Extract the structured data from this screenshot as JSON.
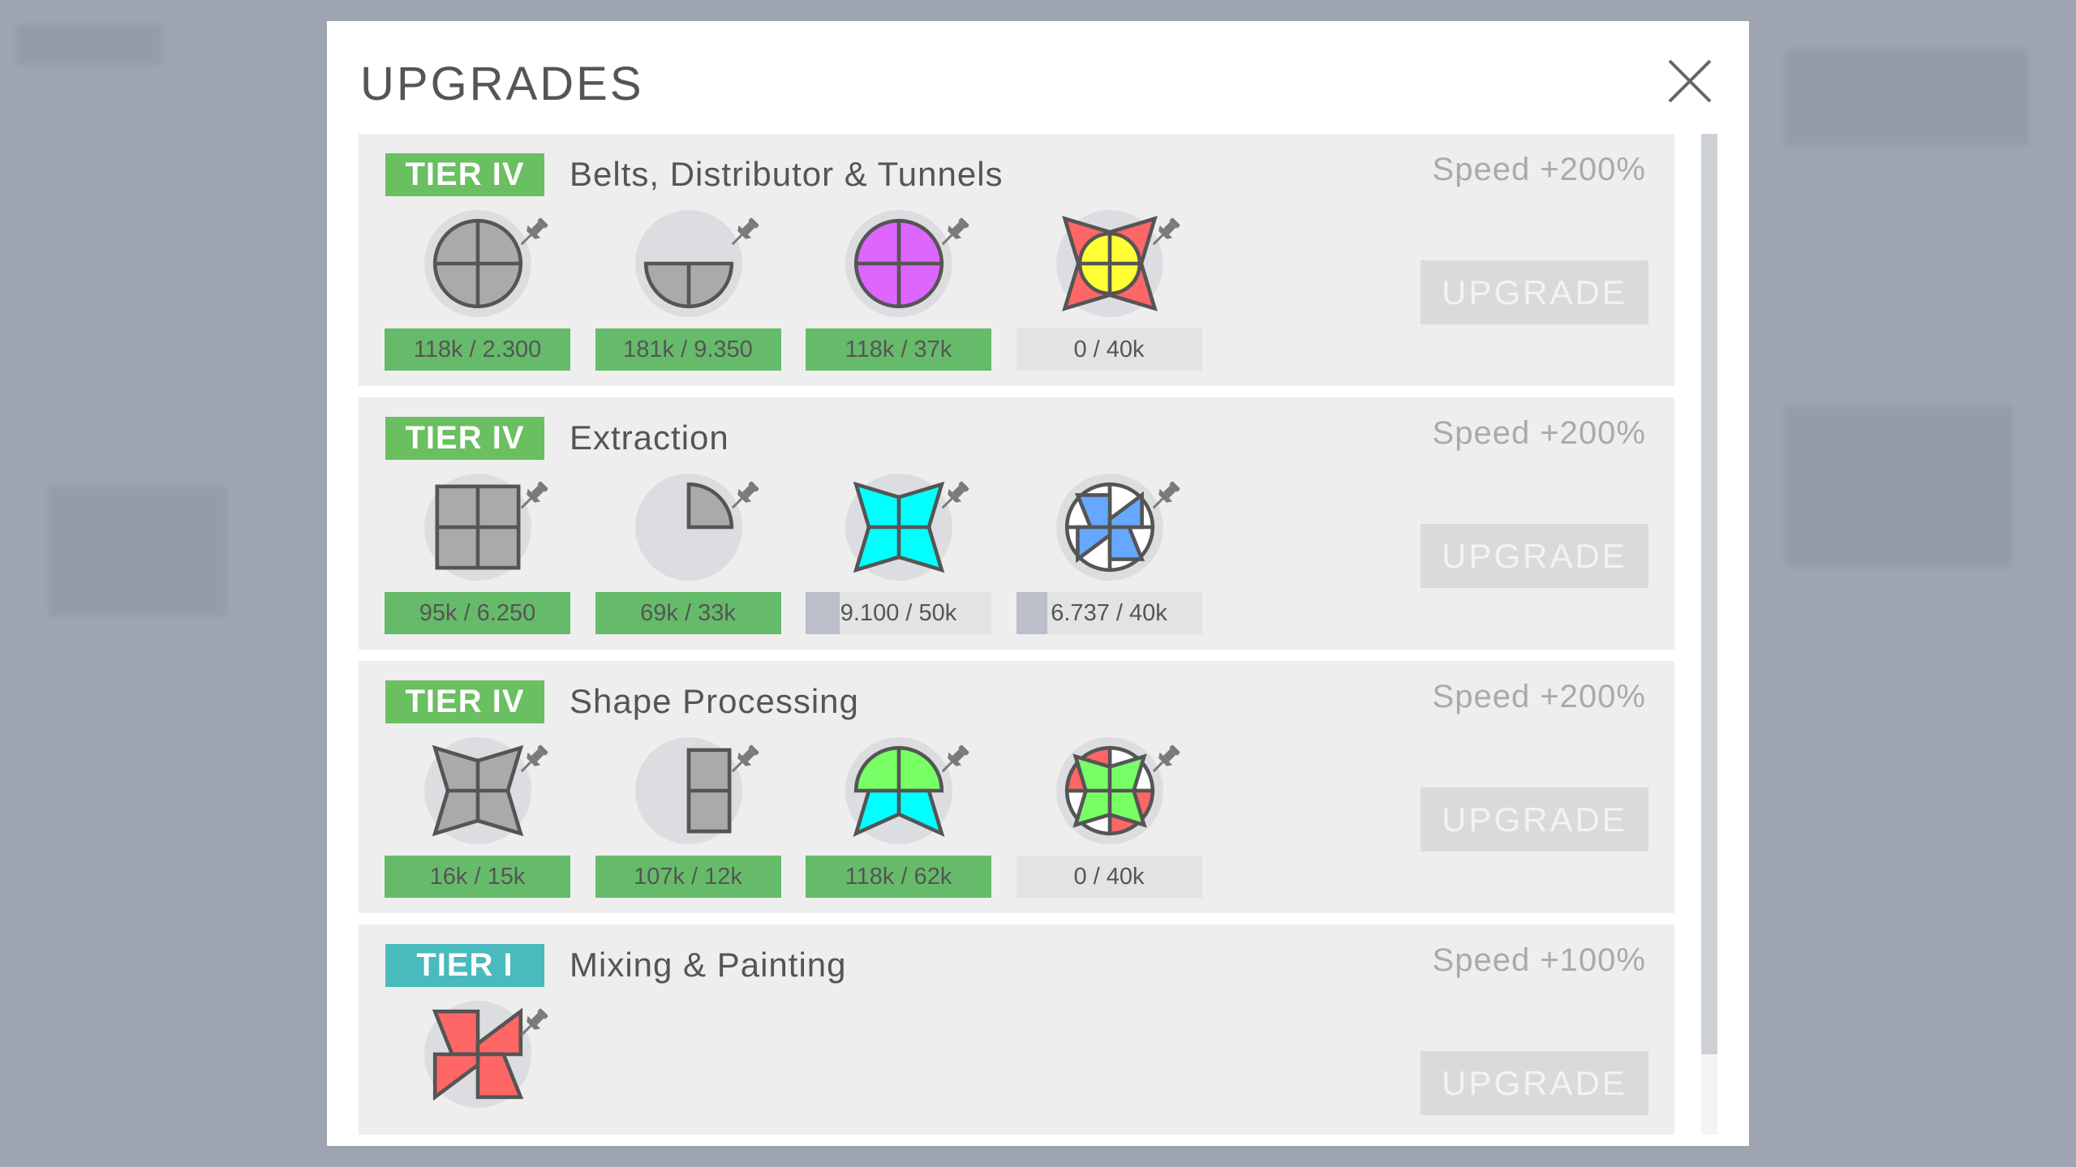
{
  "dialog": {
    "title": "UPGRADES",
    "close_icon": "close-x-icon"
  },
  "colors": {
    "complete": "#66bb6a",
    "tier_iv": "#6abf60",
    "tier_i": "#49babd",
    "progress": "#bcbfca",
    "cost_bg": "#e2e3e5"
  },
  "upgrades": [
    {
      "tier": "TIER IV",
      "tier_color": "#6abf60",
      "name": "Belts, Distributor & Tunnels",
      "speed": "Speed +200%",
      "button": "UPGRADE",
      "requirements": [
        {
          "shape": "gray-circle",
          "cost": "118k / 2.300",
          "progress": 1
        },
        {
          "shape": "gray-half-circle-bottom",
          "cost": "181k / 9.350",
          "progress": 1
        },
        {
          "shape": "purple-circle",
          "cost": "118k / 37k",
          "progress": 1
        },
        {
          "shape": "yellow-circle-on-red-star",
          "cost": "0 / 40k",
          "progress": 0
        }
      ]
    },
    {
      "tier": "TIER IV",
      "tier_color": "#6abf60",
      "name": "Extraction",
      "speed": "Speed +200%",
      "button": "UPGRADE",
      "requirements": [
        {
          "shape": "gray-square",
          "cost": "95k / 6.250",
          "progress": 1
        },
        {
          "shape": "gray-quarter-circle",
          "cost": "69k / 33k",
          "progress": 1
        },
        {
          "shape": "cyan-star",
          "cost": "9.100 / 50k",
          "progress": 0.182
        },
        {
          "shape": "blue-windmill-on-white-circle",
          "cost": "6.737 / 40k",
          "progress": 0.168
        }
      ]
    },
    {
      "tier": "TIER IV",
      "tier_color": "#6abf60",
      "name": "Shape Processing",
      "speed": "Speed +200%",
      "button": "UPGRADE",
      "requirements": [
        {
          "shape": "gray-star",
          "cost": "16k / 15k",
          "progress": 1
        },
        {
          "shape": "gray-half-rect-right",
          "cost": "107k / 12k",
          "progress": 1
        },
        {
          "shape": "green-half-circle-cyan-star",
          "cost": "118k / 62k",
          "progress": 1
        },
        {
          "shape": "green-star-on-red-white-circle",
          "cost": "0 / 40k",
          "progress": 0
        }
      ]
    },
    {
      "tier": "TIER I",
      "tier_color": "#49babd",
      "name": "Mixing & Painting",
      "speed": "Speed +100%",
      "button": "UPGRADE",
      "requirements": [
        {
          "shape": "red-windmill",
          "cost": "",
          "progress": 0
        }
      ]
    }
  ]
}
